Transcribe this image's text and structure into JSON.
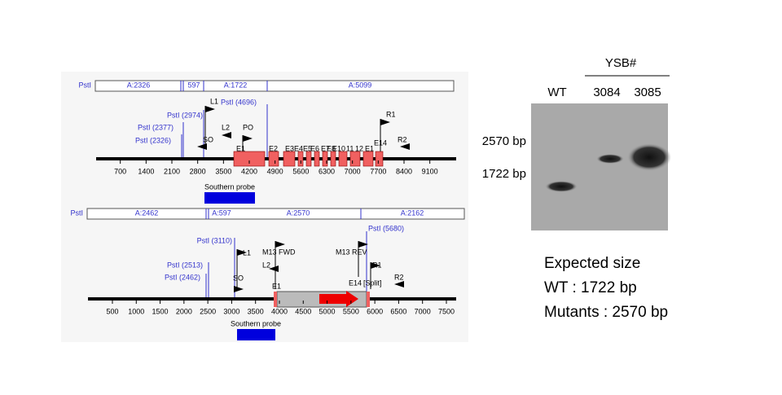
{
  "map_top": {
    "fragment_label": "PstI",
    "fragments": [
      "A:2326",
      "597",
      "A:1722",
      "A:5099"
    ],
    "sites": [
      "PstI (2974)",
      "PstI (4696)",
      "PstI (2377)",
      "PstI (2326)"
    ],
    "primers": [
      "L1",
      "L2",
      "PO",
      "SO",
      "R1",
      "R2"
    ],
    "exons": [
      "E1",
      "E2",
      "E3",
      "E4",
      "E5",
      "E6",
      "E7",
      "E8",
      "E10",
      "11",
      "12",
      "E1",
      "E14"
    ],
    "ticks": [
      700,
      1400,
      2100,
      2800,
      3500,
      4200,
      4900,
      5600,
      6300,
      7000,
      7700,
      8400,
      9100
    ],
    "probe": "Southern probe"
  },
  "map_bottom": {
    "fragment_label": "PstI",
    "fragments": [
      "A:2462",
      "A:597",
      "A:2570",
      "A:2162"
    ],
    "sites": [
      "PstI (3110)",
      "PstI (2513)",
      "PstI (2462)",
      "PstI (5680)"
    ],
    "primers": [
      "M13 FWD",
      "M13 REV",
      "L1",
      "L2",
      "SO",
      "R1",
      "R2"
    ],
    "exons": [
      "E1",
      "E14"
    ],
    "split": "[Split]",
    "ticks": [
      500,
      1000,
      1500,
      2000,
      2500,
      3000,
      3500,
      4000,
      4500,
      5000,
      5500,
      6000,
      6500,
      7000,
      7500
    ],
    "probe": "Southern probe"
  },
  "blot": {
    "group": "YSB#",
    "lanes": [
      "WT",
      "3084",
      "3085"
    ],
    "markers": [
      "2570 bp",
      "1722 bp"
    ]
  },
  "caption": [
    "Expected size",
    "WT : 1722 bp",
    "Mutants : 2570 bp"
  ]
}
